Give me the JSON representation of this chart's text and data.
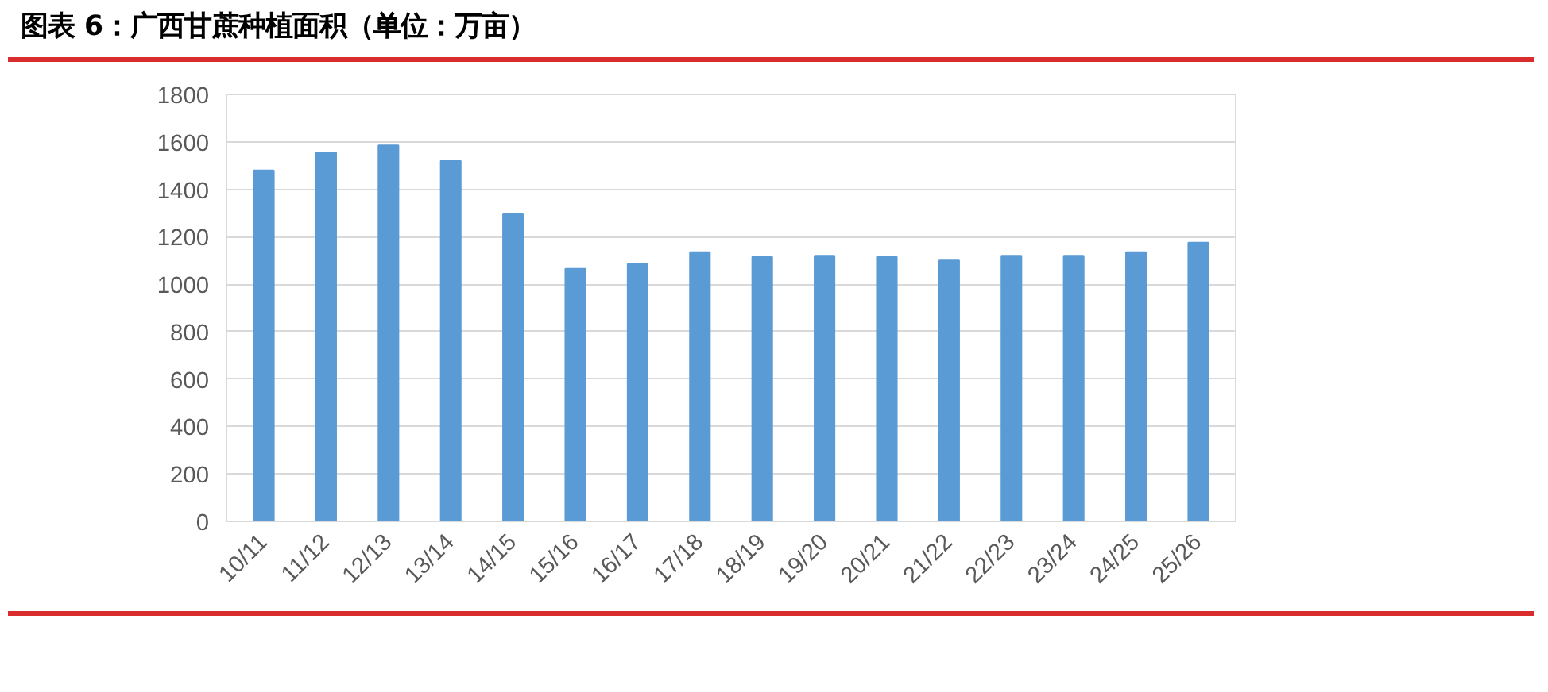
{
  "chart_data": {
    "type": "bar",
    "title": "图表 6：广西甘蔗种植面积（单位：万亩）",
    "categories": [
      "10/11",
      "11/12",
      "12/13",
      "13/14",
      "14/15",
      "15/16",
      "16/17",
      "17/18",
      "18/19",
      "19/20",
      "20/21",
      "21/22",
      "22/23",
      "23/24",
      "24/25",
      "25/26"
    ],
    "values": [
      1480,
      1555,
      1585,
      1520,
      1295,
      1065,
      1085,
      1135,
      1115,
      1120,
      1115,
      1100,
      1120,
      1120,
      1135,
      1175
    ],
    "color": "#5b9bd5",
    "ylim": [
      0,
      1800
    ],
    "yticks": [
      0,
      200,
      400,
      600,
      800,
      1000,
      1200,
      1400,
      1600,
      1800
    ],
    "grid": "y"
  }
}
